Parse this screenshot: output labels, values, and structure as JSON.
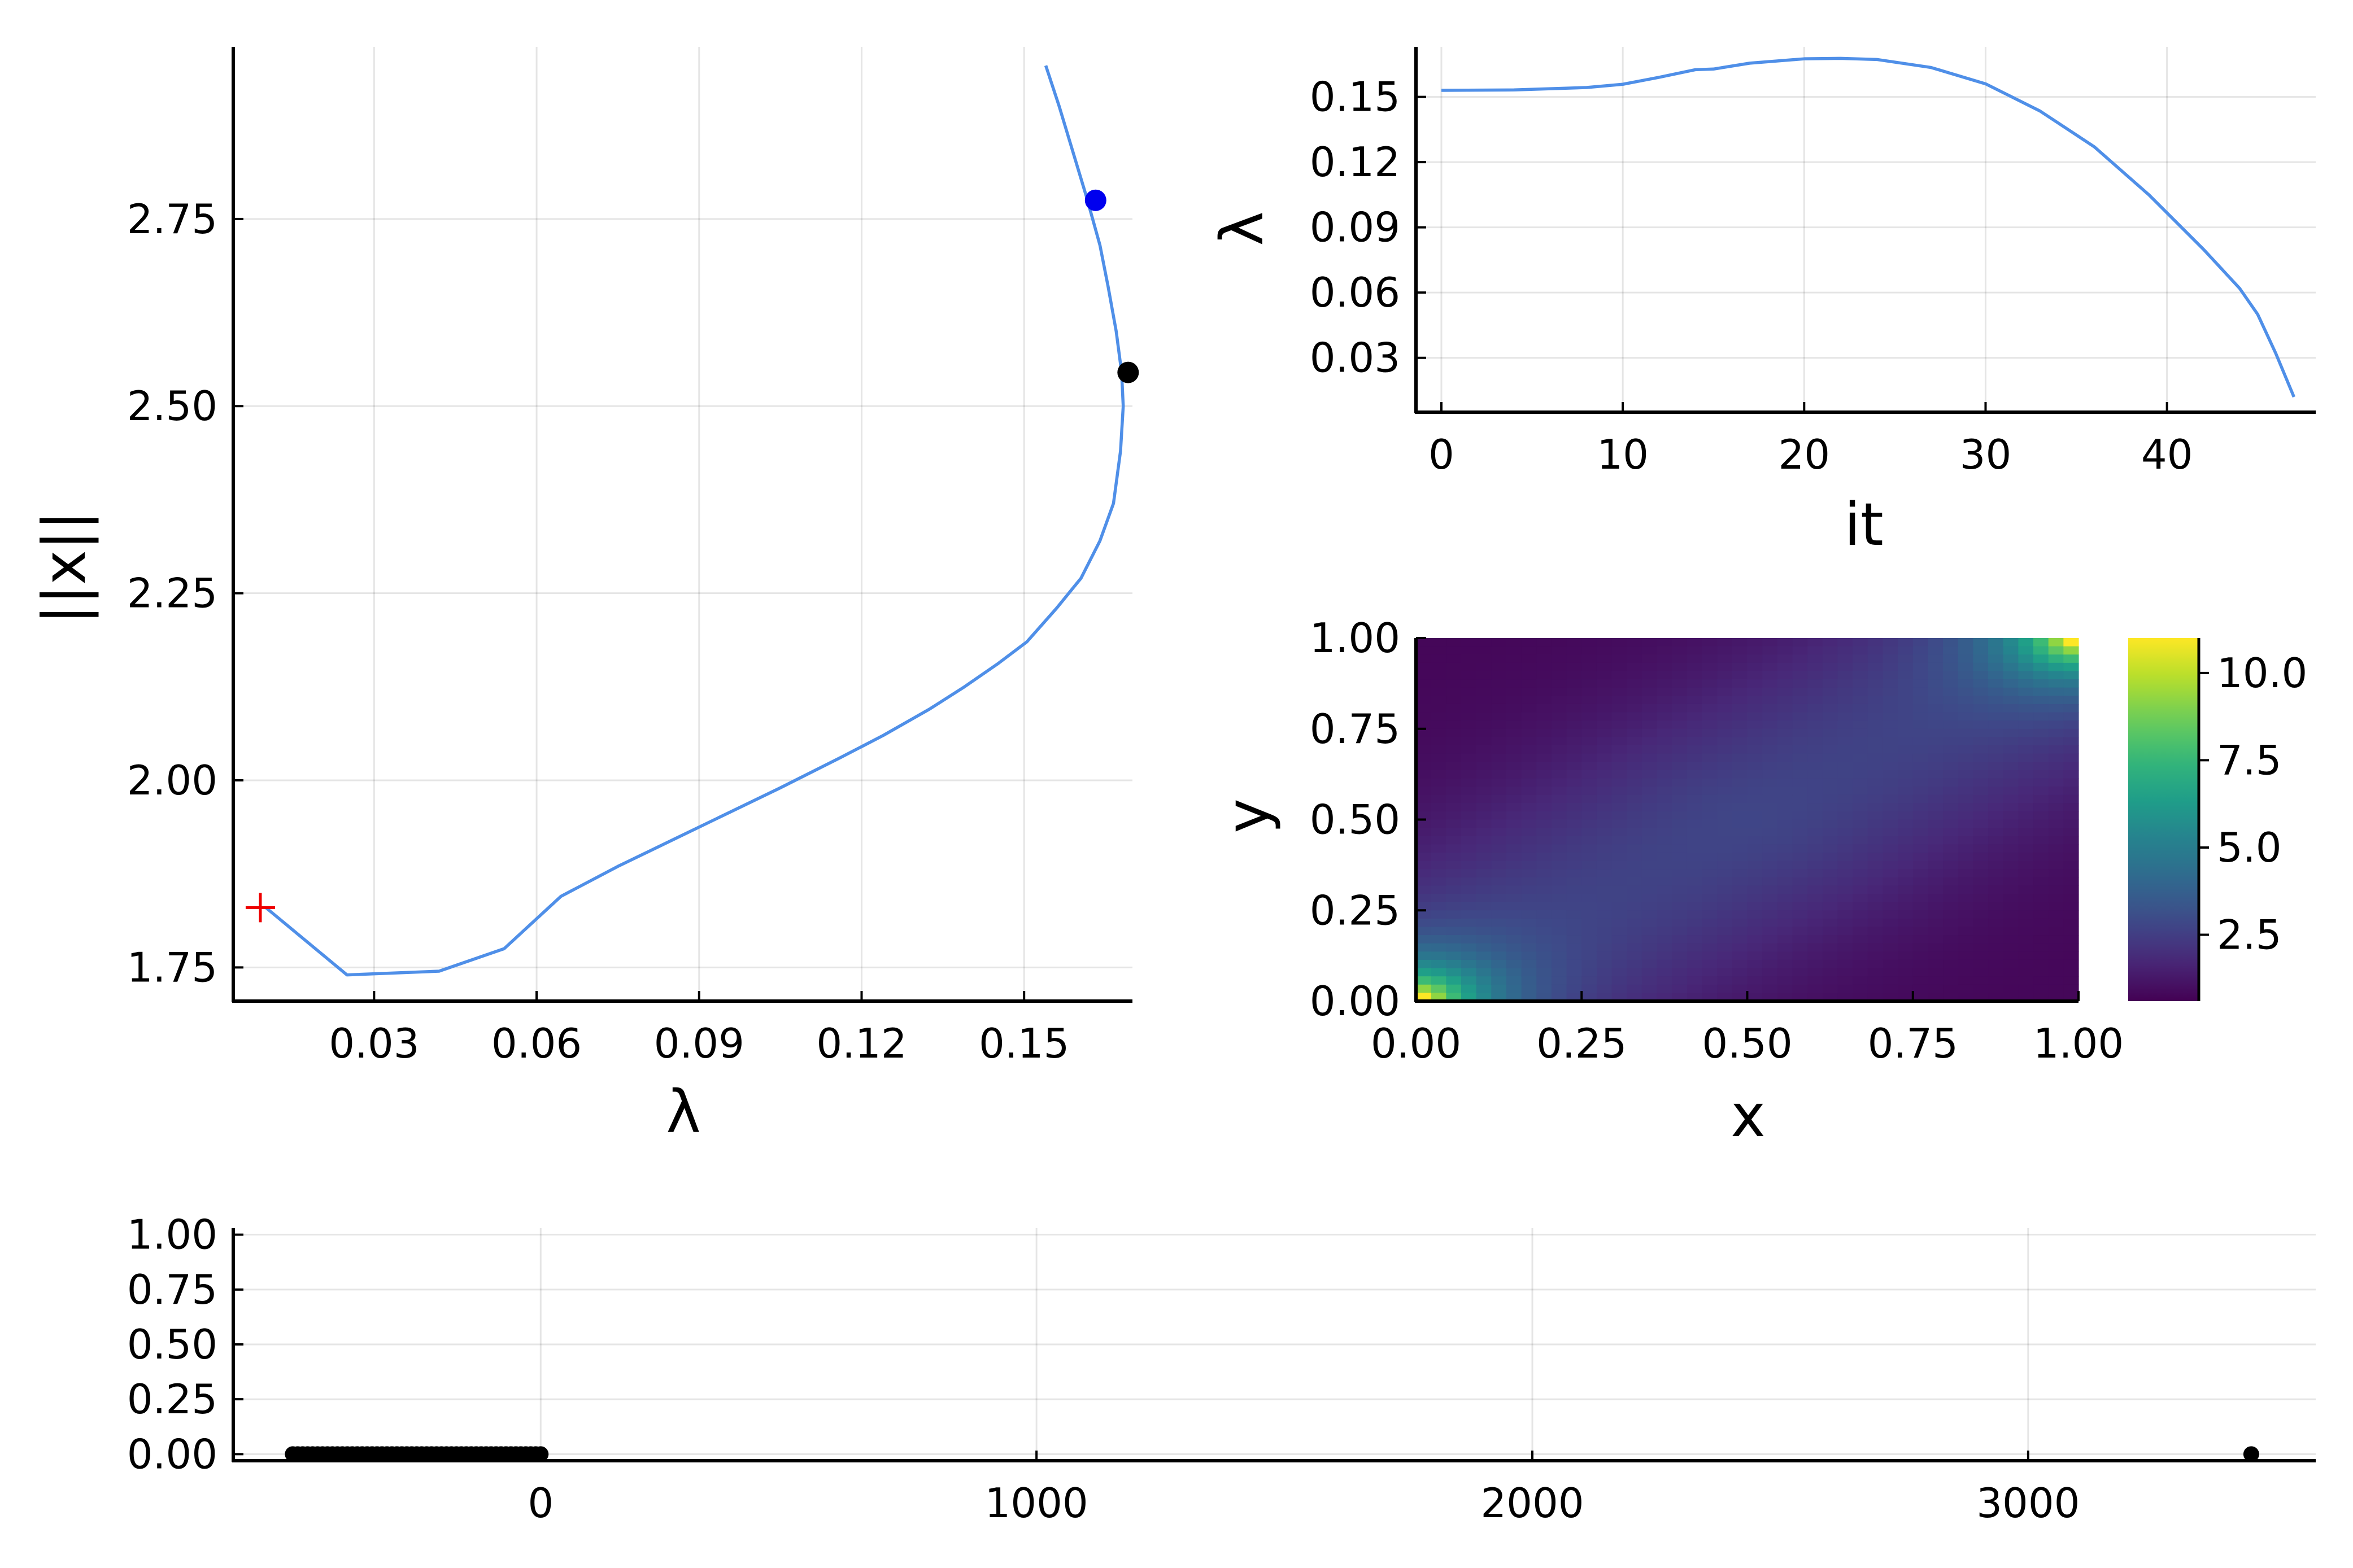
{
  "chart_data": [
    {
      "type": "line",
      "panel": "branch",
      "xlabel": "λ",
      "ylabel": "||x||",
      "xlim": [
        0.004,
        0.17
      ],
      "ylim": [
        1.705,
        2.98
      ],
      "xticks": [
        0.03,
        0.06,
        0.09,
        0.12,
        0.15
      ],
      "xtick_labels": [
        "0.03",
        "0.06",
        "0.09",
        "0.12",
        "0.15"
      ],
      "yticks": [
        1.75,
        2.0,
        2.25,
        2.5,
        2.75
      ],
      "ytick_labels": [
        "1.75",
        "2.00",
        "2.25",
        "2.50",
        "2.75"
      ],
      "grid": true,
      "line_color": "#4f8fe8",
      "series": [
        {
          "x": [
            0.154,
            0.1565,
            0.159,
            0.1615,
            0.164,
            0.1655,
            0.167,
            0.168,
            0.1683,
            0.1678,
            0.1665,
            0.164,
            0.1605,
            0.156,
            0.1505,
            0.145,
            0.139,
            0.1325,
            0.124,
            0.116,
            0.105,
            0.095,
            0.085,
            0.075,
            0.0645,
            0.054,
            0.042,
            0.025,
            0.01
          ],
          "y": [
            2.955,
            2.9,
            2.84,
            2.78,
            2.715,
            2.66,
            2.6,
            2.545,
            2.5,
            2.44,
            2.37,
            2.32,
            2.27,
            2.23,
            2.185,
            2.155,
            2.125,
            2.095,
            2.06,
            2.03,
            1.99,
            1.955,
            1.92,
            1.885,
            1.845,
            1.775,
            1.745,
            1.74,
            1.83
          ]
        }
      ],
      "markers": [
        {
          "x": 0.1632,
          "y": 2.775,
          "shape": "circle",
          "color": "#0000ee"
        },
        {
          "x": 0.1692,
          "y": 2.545,
          "shape": "circle",
          "color": "#000000"
        },
        {
          "x": 0.009,
          "y": 1.83,
          "shape": "cross",
          "color": "#ee0000"
        }
      ]
    },
    {
      "type": "line",
      "panel": "lambda-vs-it",
      "xlabel": "it",
      "ylabel": "λ",
      "xlim": [
        -1.4,
        48.2
      ],
      "ylim": [
        0.005,
        0.173
      ],
      "xticks": [
        0,
        10,
        20,
        30,
        40
      ],
      "xtick_labels": [
        "0",
        "10",
        "20",
        "30",
        "40"
      ],
      "yticks": [
        0.03,
        0.06,
        0.09,
        0.12,
        0.15
      ],
      "ytick_labels": [
        "0.03",
        "0.06",
        "0.09",
        "0.12",
        "0.15"
      ],
      "grid": true,
      "line_color": "#4f8fe8",
      "series": [
        {
          "x": [
            0,
            4,
            8,
            10,
            12,
            14,
            15,
            17,
            20,
            22,
            24,
            27,
            30,
            33,
            36,
            39,
            42,
            44,
            45,
            46,
            47
          ],
          "y": [
            0.153,
            0.1532,
            0.1543,
            0.1558,
            0.159,
            0.1625,
            0.1628,
            0.1655,
            0.1675,
            0.1677,
            0.1672,
            0.1635,
            0.156,
            0.1435,
            0.127,
            0.105,
            0.08,
            0.062,
            0.05,
            0.032,
            0.012
          ]
        }
      ]
    },
    {
      "type": "heatmap",
      "panel": "solution",
      "xlabel": "x",
      "ylabel": "y",
      "xlim": [
        0,
        1
      ],
      "ylim": [
        0,
        1
      ],
      "xticks": [
        0,
        0.25,
        0.5,
        0.75,
        1
      ],
      "xtick_labels": [
        "0.00",
        "0.25",
        "0.50",
        "0.75",
        "1.00"
      ],
      "yticks": [
        0,
        0.25,
        0.5,
        0.75,
        1
      ],
      "ytick_labels": [
        "0.00",
        "0.25",
        "0.50",
        "0.75",
        "1.00"
      ],
      "colorscale": "viridis",
      "clim": [
        0.6,
        11.0
      ],
      "colorbar_ticks": [
        2.5,
        5.0,
        7.5,
        10.0
      ],
      "colorbar_tick_labels": [
        "2.5",
        "5.0",
        "7.5",
        "10.0"
      ],
      "field": {
        "base": 0.75,
        "peaks": [
          {
            "x": 0.0,
            "y": 0.0,
            "amplitude": 10.5,
            "scale": 0.085
          },
          {
            "x": 1.0,
            "y": 1.0,
            "amplitude": 10.5,
            "scale": 0.085
          }
        ],
        "diagonal_amplitude": 2.0,
        "diagonal_width": 0.22
      }
    },
    {
      "type": "scatter",
      "panel": "spectrum",
      "xlim": [
        -620,
        3580
      ],
      "ylim": [
        -0.03,
        1.03
      ],
      "xticks": [
        0,
        1000,
        2000,
        3000
      ],
      "xtick_labels": [
        "0",
        "1000",
        "2000",
        "3000"
      ],
      "yticks": [
        0,
        0.25,
        0.5,
        0.75,
        1.0
      ],
      "ytick_labels": [
        "0.00",
        "0.25",
        "0.50",
        "0.75",
        "1.00"
      ],
      "grid": true,
      "marker_color": "#000000",
      "series": [
        {
          "x": [
            -500,
            -490,
            -480,
            -470,
            -460,
            -450,
            -440,
            -430,
            -420,
            -410,
            -400,
            -390,
            -380,
            -370,
            -360,
            -350,
            -340,
            -330,
            -320,
            -310,
            -300,
            -290,
            -280,
            -270,
            -260,
            -250,
            -240,
            -230,
            -220,
            -210,
            -200,
            -190,
            -180,
            -170,
            -160,
            -150,
            -140,
            -130,
            -120,
            -110,
            -100,
            -90,
            -80,
            -70,
            -60,
            -50,
            -40,
            -30,
            -20,
            -10,
            0,
            3450
          ],
          "y": [
            0,
            0,
            0,
            0,
            0,
            0,
            0,
            0,
            0,
            0,
            0,
            0,
            0,
            0,
            0,
            0,
            0,
            0,
            0,
            0,
            0,
            0,
            0,
            0,
            0,
            0,
            0,
            0,
            0,
            0,
            0,
            0,
            0,
            0,
            0,
            0,
            0,
            0,
            0,
            0,
            0,
            0,
            0,
            0,
            0,
            0,
            0,
            0,
            0,
            0,
            0,
            0
          ]
        }
      ]
    }
  ]
}
